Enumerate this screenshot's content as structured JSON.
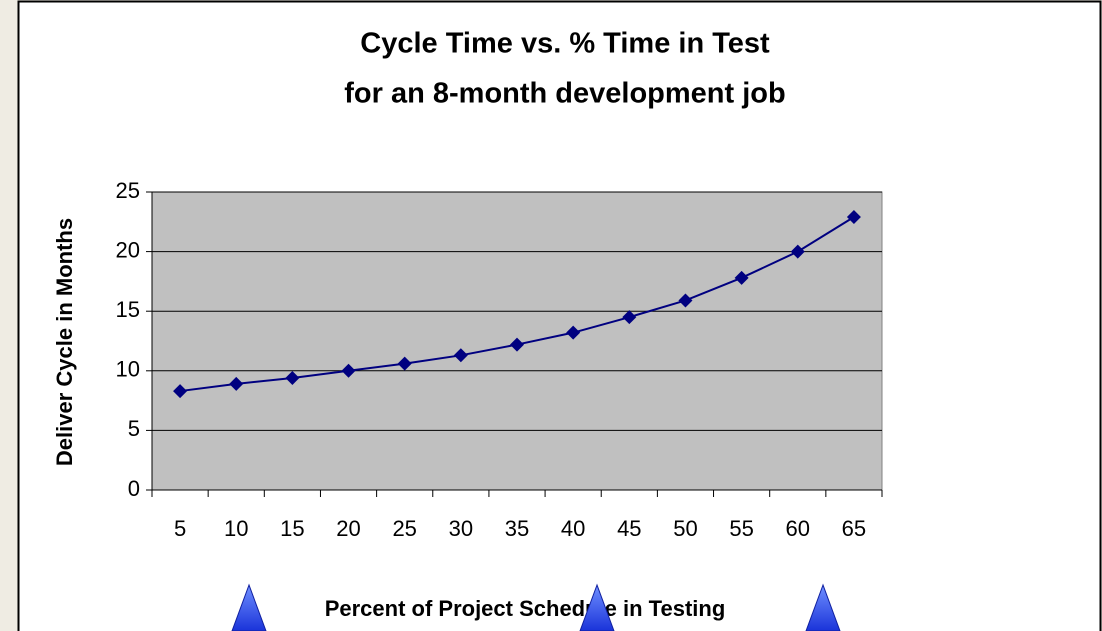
{
  "chart_data": {
    "type": "line",
    "title": "Cycle Time vs. % Time in Test",
    "subtitle": "for an 8-month development job",
    "x_label": "Percent of Project Schedule in Testing",
    "y_label": "Deliver Cycle in Months",
    "categories": [
      "5",
      "10",
      "15",
      "20",
      "25",
      "30",
      "35",
      "40",
      "45",
      "50",
      "55",
      "60",
      "65"
    ],
    "series": [
      {
        "color": "#000080",
        "values": [
          8.3,
          8.9,
          9.4,
          10.0,
          10.6,
          11.3,
          12.2,
          13.2,
          14.5,
          15.9,
          17.8,
          20.0,
          22.9
        ]
      }
    ],
    "ylim": [
      0,
      25
    ],
    "yticks": [
      0,
      5,
      10,
      15,
      20,
      25
    ],
    "grid": true
  }
}
